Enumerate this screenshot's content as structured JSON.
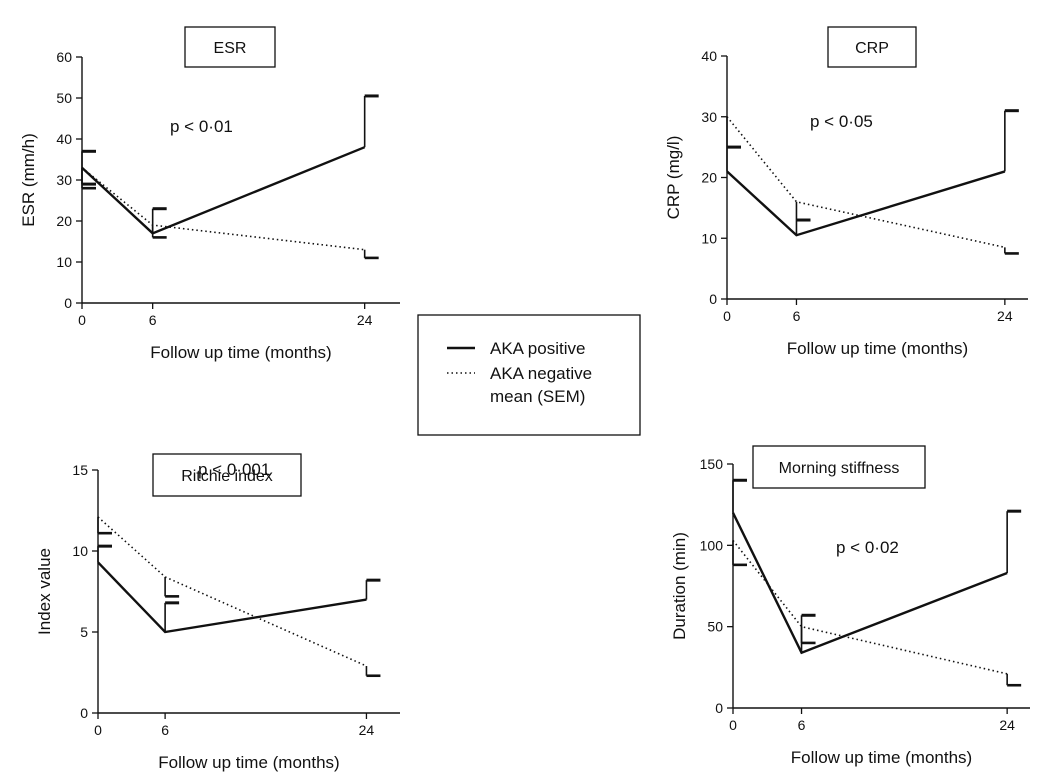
{
  "legend": {
    "items": [
      {
        "label": "AKA positive",
        "style": "solid"
      },
      {
        "label": "AKA negative",
        "style": "dotted"
      },
      {
        "label": "mean (SEM)",
        "style": "none"
      }
    ]
  },
  "colors": {
    "ink": "#111111",
    "background": "#ffffff"
  },
  "chart_data": [
    {
      "type": "line",
      "title": "ESR",
      "annotation": "p < 0·01",
      "xlabel": "Follow up time (months)",
      "ylabel": "ESR (mm/h)",
      "x": [
        0,
        6,
        24
      ],
      "xticks": [
        "0",
        "6",
        "24"
      ],
      "ylim": [
        0,
        60
      ],
      "yticks": [
        "0",
        "10",
        "20",
        "30",
        "40",
        "50",
        "60"
      ],
      "series": [
        {
          "name": "AKA positive",
          "values": [
            33,
            17,
            38
          ],
          "errors": [
            4,
            6,
            12.5
          ],
          "error_dir": [
            "both",
            "up",
            "up"
          ]
        },
        {
          "name": "AKA negative",
          "values": [
            33,
            19,
            13
          ],
          "errors": [
            5,
            3,
            2
          ],
          "error_dir": [
            "down",
            "down",
            "down"
          ]
        }
      ]
    },
    {
      "type": "line",
      "title": "CRP",
      "annotation": "p < 0·05",
      "xlabel": "Follow up time (months)",
      "ylabel": "CRP (mg/l)",
      "x": [
        0,
        6,
        24
      ],
      "xticks": [
        "0",
        "6",
        "24"
      ],
      "ylim": [
        0,
        40
      ],
      "yticks": [
        "0",
        "10",
        "20",
        "30",
        "40"
      ],
      "series": [
        {
          "name": "AKA positive",
          "values": [
            21,
            10.5,
            21
          ],
          "errors": [
            4,
            2.5,
            10
          ],
          "error_dir": [
            "up",
            "up",
            "up"
          ]
        },
        {
          "name": "AKA negative",
          "values": [
            30,
            16,
            8.5
          ],
          "errors": [
            5,
            3,
            1
          ],
          "error_dir": [
            "down",
            "down",
            "down"
          ]
        }
      ]
    },
    {
      "type": "line",
      "title": "Ritchie index",
      "annotation": "p < 0·001",
      "xlabel": "Follow up time (months)",
      "ylabel": "Index value",
      "x": [
        0,
        6,
        24
      ],
      "xticks": [
        "0",
        "6",
        "24"
      ],
      "ylim": [
        0,
        15
      ],
      "yticks": [
        "0",
        "5",
        "10",
        "15"
      ],
      "series": [
        {
          "name": "AKA positive",
          "values": [
            9.3,
            5,
            7
          ],
          "errors": [
            1,
            1.8,
            1.2
          ],
          "error_dir": [
            "up",
            "up",
            "up"
          ]
        },
        {
          "name": "AKA negative",
          "values": [
            12.1,
            8.4,
            2.9
          ],
          "errors": [
            1,
            1.2,
            0.6
          ],
          "error_dir": [
            "down",
            "down",
            "down"
          ]
        }
      ]
    },
    {
      "type": "line",
      "title": "Morning stiffness",
      "annotation": "p < 0·02",
      "xlabel": "Follow up time (months)",
      "ylabel": "Duration (min)",
      "x": [
        0,
        6,
        24
      ],
      "xticks": [
        "0",
        "6",
        "24"
      ],
      "ylim": [
        0,
        150
      ],
      "yticks": [
        "0",
        "50",
        "100",
        "150"
      ],
      "series": [
        {
          "name": "AKA positive",
          "values": [
            120,
            34,
            83
          ],
          "errors": [
            20,
            23,
            38
          ],
          "error_dir": [
            "up",
            "up",
            "up"
          ]
        },
        {
          "name": "AKA negative",
          "values": [
            103,
            50,
            21
          ],
          "errors": [
            15,
            10,
            7
          ],
          "error_dir": [
            "down",
            "down",
            "down"
          ]
        }
      ]
    }
  ]
}
